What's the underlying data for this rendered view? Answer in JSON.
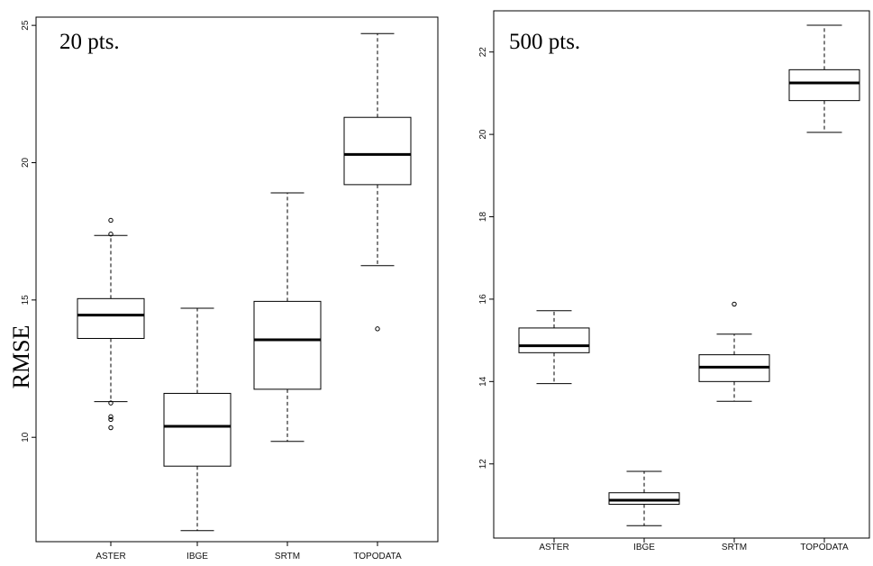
{
  "chart_data": [
    {
      "type": "boxplot",
      "panel_label": "20 pts.",
      "ylabel": "RMSE",
      "categories": [
        "ASTER",
        "IBGE",
        "SRTM",
        "TOPODATA"
      ],
      "ylim": [
        6.2,
        25.3
      ],
      "yticks": [
        10,
        15,
        20,
        25
      ],
      "boxes": [
        {
          "name": "ASTER",
          "whisker_low": 11.3,
          "q1": 13.6,
          "median": 14.45,
          "q3": 15.05,
          "whisker_high": 17.35,
          "outliers": [
            17.9,
            17.4,
            11.25,
            10.75,
            10.65,
            10.35
          ]
        },
        {
          "name": "IBGE",
          "whisker_low": 6.6,
          "q1": 8.95,
          "median": 10.4,
          "q3": 11.6,
          "whisker_high": 14.7,
          "outliers": []
        },
        {
          "name": "SRTM",
          "whisker_low": 9.85,
          "q1": 11.75,
          "median": 13.55,
          "q3": 14.95,
          "whisker_high": 18.9,
          "outliers": []
        },
        {
          "name": "TOPODATA",
          "whisker_low": 16.25,
          "q1": 19.2,
          "median": 20.3,
          "q3": 21.65,
          "whisker_high": 24.7,
          "outliers": [
            13.95
          ]
        }
      ]
    },
    {
      "type": "boxplot",
      "panel_label": "500 pts.",
      "ylabel": "",
      "categories": [
        "ASTER",
        "IBGE",
        "SRTM",
        "TOPODATA"
      ],
      "ylim": [
        10.2,
        23.0
      ],
      "yticks": [
        12,
        14,
        16,
        18,
        20,
        22
      ],
      "boxes": [
        {
          "name": "ASTER",
          "whisker_low": 13.95,
          "q1": 14.7,
          "median": 14.87,
          "q3": 15.3,
          "whisker_high": 15.72,
          "outliers": []
        },
        {
          "name": "IBGE",
          "whisker_low": 10.5,
          "q1": 11.02,
          "median": 11.12,
          "q3": 11.3,
          "whisker_high": 11.82,
          "outliers": []
        },
        {
          "name": "SRTM",
          "whisker_low": 13.52,
          "q1": 14.0,
          "median": 14.35,
          "q3": 14.65,
          "whisker_high": 15.15,
          "outliers": [
            15.88
          ]
        },
        {
          "name": "TOPODATA",
          "whisker_low": 20.05,
          "q1": 20.82,
          "median": 21.25,
          "q3": 21.57,
          "whisker_high": 22.65,
          "outliers": []
        }
      ]
    }
  ]
}
